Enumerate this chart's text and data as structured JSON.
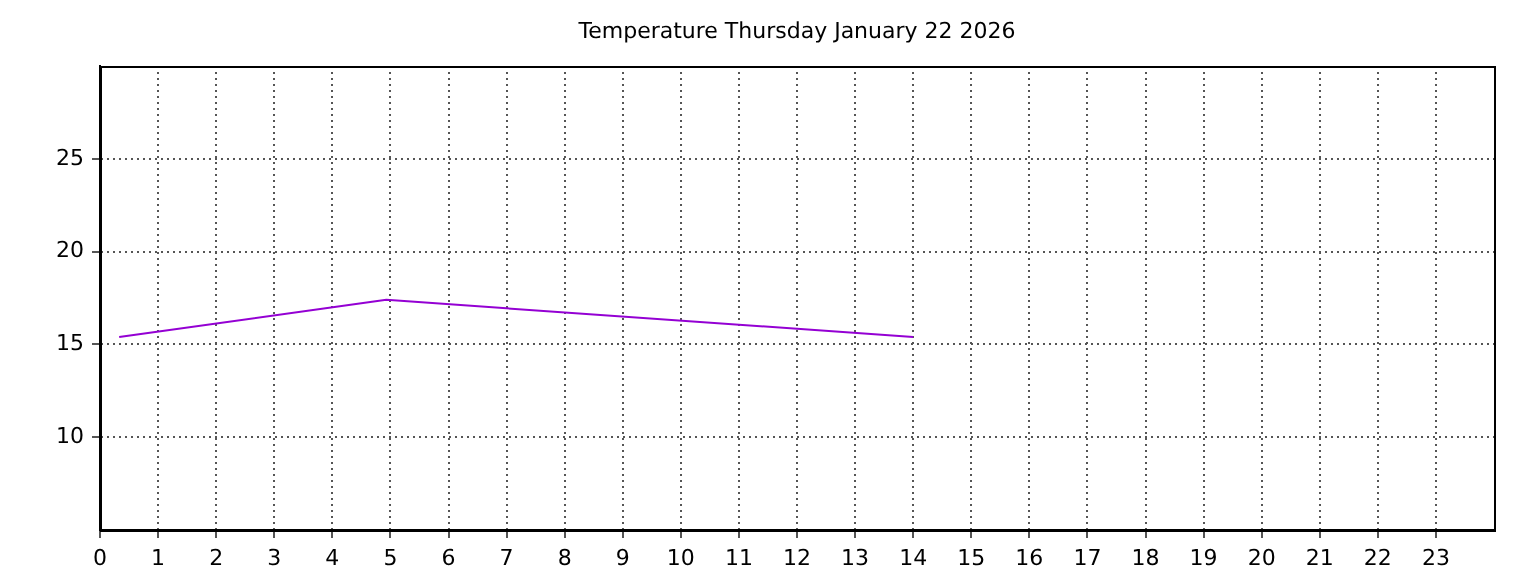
{
  "chart_data": {
    "type": "line",
    "title": "Temperature Thursday January 22 2026",
    "x": [
      0.33,
      4.93,
      14.0
    ],
    "series": [
      {
        "color": "#9400d3",
        "values": [
          15.4,
          17.4,
          15.4
        ]
      }
    ],
    "xlim": [
      0,
      24
    ],
    "xticks": [
      0,
      1,
      2,
      3,
      4,
      5,
      6,
      7,
      8,
      9,
      10,
      11,
      12,
      13,
      14,
      15,
      16,
      17,
      18,
      19,
      20,
      21,
      22,
      23
    ],
    "ylim": [
      5,
      30
    ],
    "yticks": [
      10,
      15,
      20,
      25
    ],
    "grid": true,
    "legend": false,
    "marker": "none",
    "line_style": "solid"
  }
}
